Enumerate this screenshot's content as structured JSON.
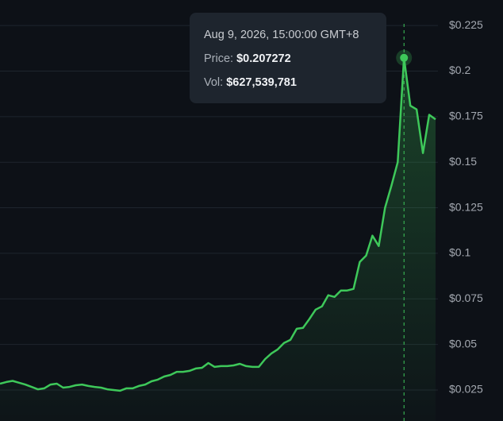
{
  "chart_data": {
    "type": "line",
    "values": [
      0.0285,
      0.0294,
      0.03,
      0.029,
      0.028,
      0.0267,
      0.0254,
      0.0259,
      0.028,
      0.0285,
      0.0263,
      0.0267,
      0.0276,
      0.028,
      0.0272,
      0.0267,
      0.0263,
      0.0254,
      0.025,
      0.0246,
      0.0259,
      0.0259,
      0.0272,
      0.028,
      0.0298,
      0.0307,
      0.0324,
      0.0333,
      0.035,
      0.035,
      0.0355,
      0.0368,
      0.0372,
      0.0398,
      0.0377,
      0.0381,
      0.0381,
      0.0385,
      0.0394,
      0.0381,
      0.0377,
      0.0377,
      0.042,
      0.0451,
      0.0473,
      0.0508,
      0.0525,
      0.0586,
      0.0591,
      0.0639,
      0.0691,
      0.0709,
      0.077,
      0.0761,
      0.0796,
      0.0796,
      0.0805,
      0.0953,
      0.0988,
      0.1097,
      0.104,
      0.125,
      0.137,
      0.15,
      0.207272,
      0.181,
      0.179,
      0.155,
      0.176,
      0.1735
    ],
    "color": "#3ec85a",
    "ylim": [
      0.008,
      0.239
    ],
    "yticks": [
      {
        "value": 0.025,
        "label": "$0.025"
      },
      {
        "value": 0.05,
        "label": "$0.05"
      },
      {
        "value": 0.075,
        "label": "$0.075"
      },
      {
        "value": 0.1,
        "label": "$0.1"
      },
      {
        "value": 0.125,
        "label": "$0.125"
      },
      {
        "value": 0.15,
        "label": "$0.15"
      },
      {
        "value": 0.175,
        "label": "$0.175"
      },
      {
        "value": 0.2,
        "label": "$0.2"
      },
      {
        "value": 0.225,
        "label": "$0.225"
      }
    ],
    "grid": true,
    "tooltip": {
      "date": "Aug 9, 2026, 15:00:00 GMT+8",
      "price_label": "Price:",
      "price": "$0.207272",
      "vol_label": "Vol:",
      "vol": "$627,539,781"
    }
  }
}
